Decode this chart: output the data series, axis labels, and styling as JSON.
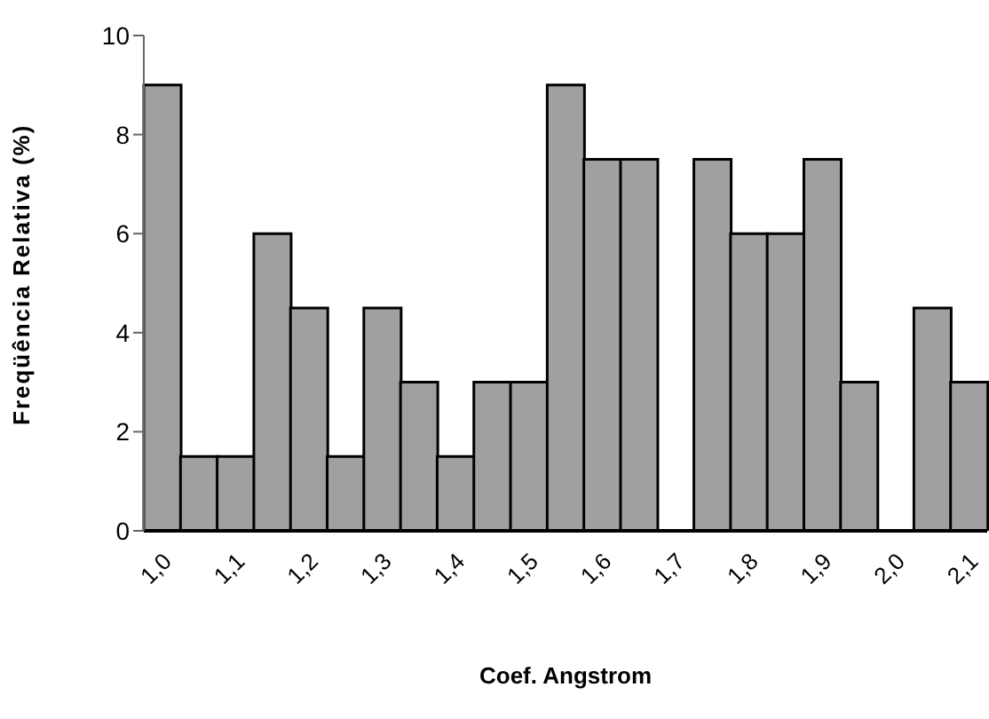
{
  "chart_data": {
    "type": "bar",
    "xlabel": "Coef. Angstrom",
    "ylabel": "Freqüência Relativa (%)",
    "categories": [
      "1,0",
      null,
      "1,1",
      null,
      "1,2",
      null,
      "1,3",
      null,
      "1,4",
      null,
      "1,5",
      null,
      "1,6",
      null,
      "1,7",
      null,
      "1,8",
      null,
      "1,9",
      null,
      "2,0",
      null,
      "2,1"
    ],
    "values": [
      9,
      1.5,
      1.5,
      6,
      4.5,
      1.5,
      4.5,
      3,
      1.5,
      3,
      3,
      9,
      7.5,
      7.5,
      0,
      7.5,
      6,
      6,
      7.5,
      3,
      0,
      4.5,
      3
    ],
    "color": "#a0a0a0",
    "ylim": [
      0,
      10
    ],
    "yticks": [
      0,
      2,
      4,
      6,
      8,
      10
    ],
    "grid": false,
    "legend": false
  }
}
